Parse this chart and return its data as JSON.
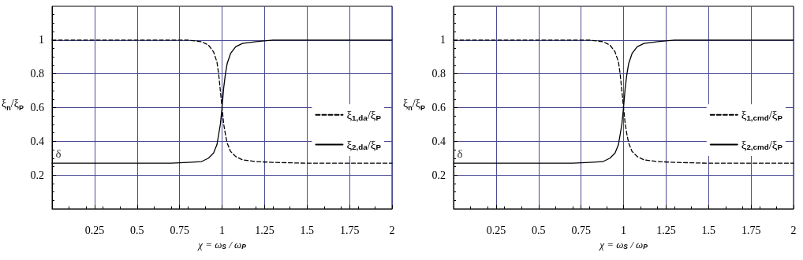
{
  "chart_data": [
    {
      "type": "line",
      "xlabel": "χ = ω$_{S}$ / ω$_{P}$",
      "ylabel": "ξ$_{n}$/ξ$_{P}$",
      "xlim": [
        0,
        2
      ],
      "ylim": [
        0,
        1.2
      ],
      "xticks": [
        0.25,
        0.5,
        0.75,
        1,
        1.25,
        1.5,
        1.75,
        2
      ],
      "yticks": [
        0.2,
        0.4,
        0.6,
        0.8,
        1
      ],
      "grid": true,
      "legend": "right",
      "marker": "none",
      "annotations": [
        {
          "text": "δ",
          "x": 0.03,
          "y": 0.27
        }
      ],
      "series": [
        {
          "name": "ξ$_{1,da}$/ξ$_{P}$",
          "color": "#000000",
          "line_style": "dashed",
          "x": [
            0,
            0.5,
            0.8,
            0.88,
            0.92,
            0.95,
            0.97,
            0.98,
            0.99,
            1,
            1.01,
            1.02,
            1.03,
            1.05,
            1.08,
            1.12,
            1.2,
            1.3,
            1.5,
            2
          ],
          "values": [
            1,
            1,
            1,
            0.99,
            0.97,
            0.93,
            0.87,
            0.8,
            0.7,
            0.6,
            0.5,
            0.44,
            0.39,
            0.34,
            0.31,
            0.29,
            0.28,
            0.275,
            0.27,
            0.27
          ]
        },
        {
          "name": "ξ$_{2,da}$/ξ$_{P}$",
          "color": "#000000",
          "line_style": "solid",
          "x": [
            0,
            0.5,
            0.7,
            0.8,
            0.88,
            0.92,
            0.95,
            0.97,
            0.98,
            0.99,
            1,
            1.01,
            1.02,
            1.03,
            1.05,
            1.08,
            1.12,
            1.2,
            1.3,
            1.5,
            2
          ],
          "values": [
            0.27,
            0.27,
            0.27,
            0.275,
            0.28,
            0.3,
            0.33,
            0.38,
            0.44,
            0.5,
            0.6,
            0.72,
            0.8,
            0.86,
            0.92,
            0.96,
            0.98,
            0.99,
            1,
            1,
            1
          ]
        }
      ]
    },
    {
      "type": "line",
      "xlabel": "χ = ω$_{S}$ / ω$_{P}$",
      "ylabel": "ξ$_{n}$/ξ$_{P}$",
      "xlim": [
        0,
        2
      ],
      "ylim": [
        0,
        1.2
      ],
      "xticks": [
        0.25,
        0.5,
        0.75,
        1,
        1.25,
        1.5,
        1.75,
        2
      ],
      "yticks": [
        0.2,
        0.4,
        0.6,
        0.8,
        1
      ],
      "grid": true,
      "legend": "right",
      "marker": "none",
      "annotations": [
        {
          "text": "δ",
          "x": 0.03,
          "y": 0.27
        }
      ],
      "series": [
        {
          "name": "ξ$_{1,cmd}$/ξ$_{P}$",
          "color": "#000000",
          "line_style": "dashed",
          "x": [
            0,
            0.5,
            0.8,
            0.88,
            0.92,
            0.95,
            0.97,
            0.98,
            0.99,
            1,
            1.01,
            1.02,
            1.03,
            1.05,
            1.08,
            1.12,
            1.2,
            1.3,
            1.5,
            2
          ],
          "values": [
            1,
            1,
            1,
            0.99,
            0.97,
            0.93,
            0.87,
            0.8,
            0.7,
            0.6,
            0.5,
            0.44,
            0.39,
            0.34,
            0.31,
            0.29,
            0.28,
            0.275,
            0.27,
            0.27
          ]
        },
        {
          "name": "ξ$_{2,cmd}$/ξ$_{P}$",
          "color": "#000000",
          "line_style": "solid",
          "x": [
            0,
            0.5,
            0.7,
            0.8,
            0.88,
            0.92,
            0.95,
            0.97,
            0.98,
            0.99,
            1,
            1.01,
            1.02,
            1.03,
            1.05,
            1.08,
            1.12,
            1.2,
            1.3,
            1.5,
            2
          ],
          "values": [
            0.27,
            0.27,
            0.27,
            0.275,
            0.28,
            0.3,
            0.33,
            0.38,
            0.44,
            0.5,
            0.6,
            0.72,
            0.8,
            0.86,
            0.92,
            0.96,
            0.98,
            0.99,
            1,
            1,
            1
          ]
        }
      ]
    }
  ]
}
